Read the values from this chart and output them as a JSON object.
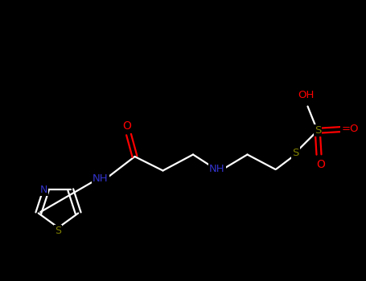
{
  "background_color": "#000000",
  "bond_color": "#FFFFFF",
  "label_colors": {
    "N": "#3333CC",
    "O": "#FF0000",
    "S": "#808000",
    "OH": "#FF0000",
    "NH": "#3333CC"
  },
  "figsize": [
    4.55,
    3.5
  ],
  "dpi": 100,
  "bond_lw": 1.6,
  "font_size": 9.5
}
